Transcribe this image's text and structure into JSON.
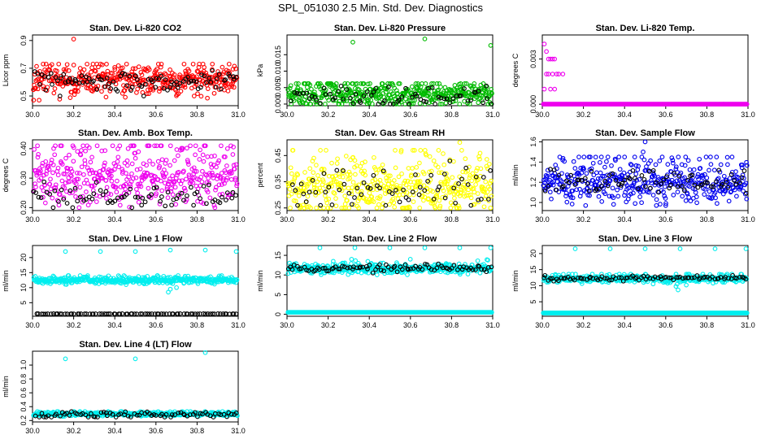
{
  "page": {
    "title": "SPL_051030  2.5 Min. Std. Dev. Diagnostics"
  },
  "chart_data": [
    {
      "type": "scatter",
      "title": "Stan. Dev. Li-820 CO2",
      "ylabel": "Licor ppm",
      "xlim": [
        30.0,
        31.0
      ],
      "ylim": [
        0.43,
        0.94
      ],
      "xticks": [
        "30.0",
        "30.2",
        "30.4",
        "30.6",
        "30.8",
        "31.0"
      ],
      "yticks": [
        "0.5",
        "0.7",
        "0.9"
      ],
      "primary_color": "#ff0000",
      "secondary_color": "#000000",
      "primary_count": 420,
      "primary_center": 0.6,
      "primary_spread": 0.05,
      "primary_min": 0.47,
      "primary_max": 0.73,
      "primary_outliers": [
        [
          30.2,
          0.91
        ]
      ],
      "secondary_count": 95,
      "secondary_center": 0.6,
      "secondary_spread": 0.04,
      "secondary_min": 0.5,
      "secondary_max": 0.7
    },
    {
      "type": "scatter",
      "title": "Stan. Dev. Li-820 Pressure",
      "ylabel": "kPa",
      "xlim": [
        30.0,
        31.0
      ],
      "ylim": [
        -0.0005,
        0.021
      ],
      "xticks": [
        "30.0",
        "30.2",
        "30.4",
        "30.6",
        "30.8",
        "31.0"
      ],
      "yticks": [
        "0.000",
        "0.005",
        "0.010",
        "0.015"
      ],
      "primary_color": "#00bb00",
      "secondary_color": "#000000",
      "primary_count": 460,
      "primary_center": 0.0025,
      "primary_spread": 0.0018,
      "primary_min": 0.0,
      "primary_max": 0.0062,
      "primary_outliers": [
        [
          30.32,
          0.0188
        ],
        [
          30.67,
          0.0198
        ],
        [
          30.99,
          0.0178
        ]
      ],
      "secondary_count": 70,
      "secondary_center": 0.002,
      "secondary_spread": 0.0017,
      "secondary_min": 0.0,
      "secondary_max": 0.0055
    },
    {
      "type": "scatter",
      "title": "Stan. Dev. Li-820 Temp.",
      "ylabel": "degrees C",
      "xlim": [
        30.0,
        31.0
      ],
      "ylim": [
        -0.0001,
        0.0046
      ],
      "xticks": [
        "30.0",
        "30.2",
        "30.4",
        "30.6",
        "30.8",
        "31.0"
      ],
      "yticks": [
        "0.000",
        "0.003"
      ],
      "primary_color": "#ee00ee",
      "secondary_color": "#000000",
      "primary_count": 300,
      "primary_center": 0.0,
      "primary_spread": 0.0,
      "primary_min": 0.0,
      "primary_max": 0.0,
      "primary_outliers": [
        [
          30.0,
          0.0045
        ],
        [
          30.01,
          0.004
        ],
        [
          30.02,
          0.0035
        ],
        [
          30.03,
          0.003
        ],
        [
          30.04,
          0.003
        ],
        [
          30.05,
          0.003
        ],
        [
          30.06,
          0.003
        ],
        [
          30.03,
          0.002
        ],
        [
          30.0,
          0.002
        ],
        [
          30.02,
          0.002
        ],
        [
          30.05,
          0.002
        ],
        [
          30.07,
          0.002
        ],
        [
          30.08,
          0.002
        ],
        [
          30.1,
          0.002
        ],
        [
          30.01,
          0.001
        ],
        [
          30.04,
          0.001
        ],
        [
          30.06,
          0.001
        ]
      ],
      "secondary_count": 0
    },
    {
      "type": "scatter",
      "title": "Stan. Dev. Amb. Box Temp.",
      "ylabel": "degrees C",
      "xlim": [
        30.0,
        31.0
      ],
      "ylim": [
        0.19,
        0.43
      ],
      "xticks": [
        "30.0",
        "30.2",
        "30.4",
        "30.6",
        "30.8",
        "31.0"
      ],
      "yticks": [
        "0.20",
        "0.30",
        "0.40"
      ],
      "primary_color": "#ee00ee",
      "secondary_color": "#000000",
      "primary_count": 440,
      "primary_center": 0.29,
      "primary_spread": 0.045,
      "primary_min": 0.2,
      "primary_max": 0.41,
      "primary_outliers": [],
      "secondary_count": 75,
      "secondary_center": 0.24,
      "secondary_spread": 0.02,
      "secondary_min": 0.2,
      "secondary_max": 0.3
    },
    {
      "type": "scatter",
      "title": "Stan. Dev. Gas Stream RH",
      "ylabel": "percent",
      "xlim": [
        30.0,
        31.0
      ],
      "ylim": [
        0.24,
        0.51
      ],
      "xticks": [
        "30.0",
        "30.2",
        "30.4",
        "30.6",
        "30.8",
        "31.0"
      ],
      "yticks": [
        "0.25",
        "0.35",
        "0.45"
      ],
      "primary_color": "#ffff00",
      "secondary_color": "#000000",
      "primary_count": 450,
      "primary_center": 0.31,
      "primary_spread": 0.045,
      "primary_min": 0.25,
      "primary_max": 0.47,
      "primary_outliers": [
        [
          30.84,
          0.5
        ]
      ],
      "secondary_count": 65,
      "secondary_center": 0.32,
      "secondary_spread": 0.04,
      "secondary_min": 0.26,
      "secondary_max": 0.46
    },
    {
      "type": "scatter",
      "title": "Stan. Dev. Sample Flow",
      "ylabel": "ml/min",
      "xlim": [
        30.0,
        31.0
      ],
      "ylim": [
        0.92,
        1.62
      ],
      "xticks": [
        "30.0",
        "30.2",
        "30.4",
        "30.6",
        "30.8",
        "31.0"
      ],
      "yticks": [
        "1.0",
        "1.2",
        "1.4",
        "1.6"
      ],
      "primary_color": "#0000ee",
      "secondary_color": "#000000",
      "primary_count": 430,
      "primary_center": 1.17,
      "primary_spread": 0.09,
      "primary_min": 0.97,
      "primary_max": 1.45,
      "primary_outliers": [
        [
          30.5,
          1.6
        ],
        [
          30.49,
          1.5
        ],
        [
          30.6,
          0.97
        ]
      ],
      "secondary_count": 80,
      "secondary_center": 1.2,
      "secondary_spread": 0.06,
      "secondary_min": 1.02,
      "secondary_max": 1.35
    },
    {
      "type": "scatter",
      "title": "Stan. Dev. Line 1 Flow",
      "ylabel": "ml/min",
      "xlim": [
        30.0,
        31.0
      ],
      "ylim": [
        0.5,
        24.0
      ],
      "xticks": [
        "30.0",
        "30.2",
        "30.4",
        "30.6",
        "30.8",
        "31.0"
      ],
      "yticks": [
        "5",
        "10",
        "15",
        "20"
      ],
      "primary_color": "#00eeee",
      "secondary_color": "#000000",
      "primary_count": 430,
      "primary_center": 12.3,
      "primary_spread": 0.5,
      "primary_min": 10.5,
      "primary_max": 14.0,
      "primary_outliers": [
        [
          30.16,
          22.0
        ],
        [
          30.33,
          22.0
        ],
        [
          30.5,
          22.0
        ],
        [
          30.67,
          22.5
        ],
        [
          30.84,
          22.5
        ],
        [
          30.99,
          22.0
        ],
        [
          30.67,
          9.5
        ],
        [
          30.66,
          8.5
        ],
        [
          30.7,
          10.0
        ]
      ],
      "secondary_count": 85,
      "secondary_center": 1.3,
      "secondary_spread": 0.02,
      "secondary_min": 1.2,
      "secondary_max": 1.4
    },
    {
      "type": "scatter",
      "title": "Stan. Dev. Line 2 Flow",
      "ylabel": "ml/min",
      "xlim": [
        30.0,
        31.0
      ],
      "ylim": [
        -0.5,
        17.5
      ],
      "xticks": [
        "30.0",
        "30.2",
        "30.4",
        "30.6",
        "30.8",
        "31.0"
      ],
      "yticks": [
        "0",
        "5",
        "10",
        "15"
      ],
      "primary_color": "#00eeee",
      "secondary_color": "#000000",
      "primary_count": 460,
      "primary_center": 11.4,
      "primary_spread": 0.5,
      "primary_min": 9.5,
      "primary_max": 14.0,
      "primary_outliers": [
        [
          30.16,
          16.9
        ],
        [
          30.33,
          16.9
        ],
        [
          30.5,
          16.9
        ],
        [
          30.67,
          16.9
        ],
        [
          30.84,
          16.9
        ],
        [
          30.99,
          16.9
        ]
      ],
      "secondary_count": 90,
      "secondary_center": 11.8,
      "secondary_spread": 0.5,
      "secondary_min": 10.5,
      "secondary_max": 14.0,
      "baseline_color": "#00eeee",
      "baseline_count": 320,
      "baseline_value": 0.5
    },
    {
      "type": "scatter",
      "title": "Stan. Dev. Line 3 Flow",
      "ylabel": "ml/min",
      "xlim": [
        30.0,
        31.0
      ],
      "ylim": [
        0.5,
        22.5
      ],
      "xticks": [
        "30.0",
        "30.2",
        "30.4",
        "30.6",
        "30.8",
        "31.0"
      ],
      "yticks": [
        "5",
        "10",
        "15",
        "20"
      ],
      "primary_color": "#00eeee",
      "secondary_color": "#000000",
      "primary_count": 400,
      "primary_center": 12.0,
      "primary_spread": 0.5,
      "primary_min": 10.5,
      "primary_max": 13.6,
      "primary_outliers": [
        [
          30.16,
          21.5
        ],
        [
          30.33,
          21.5
        ],
        [
          30.5,
          21.5
        ],
        [
          30.67,
          21.5
        ],
        [
          30.84,
          21.5
        ],
        [
          30.99,
          21.5
        ],
        [
          30.66,
          8.7
        ],
        [
          30.65,
          9.8
        ],
        [
          30.7,
          10.2
        ]
      ],
      "secondary_count": 90,
      "secondary_center": 12.3,
      "secondary_spread": 0.4,
      "secondary_min": 11.2,
      "secondary_max": 13.2,
      "baseline_color": "#00eeee",
      "baseline_count": 320,
      "baseline_value": 1.5
    },
    {
      "type": "scatter",
      "title": "Stan. Dev. Line 4 (LT) Flow",
      "ylabel": "ml/min",
      "xlim": [
        30.0,
        31.0
      ],
      "ylim": [
        0.18,
        1.2
      ],
      "xticks": [
        "30.0",
        "30.2",
        "30.4",
        "30.6",
        "30.8",
        "31.0"
      ],
      "yticks": [
        "0.2",
        "0.4",
        "0.6",
        "0.8",
        "1.0"
      ],
      "primary_color": "#00eeee",
      "secondary_color": "#000000",
      "primary_count": 430,
      "primary_center": 0.29,
      "primary_spread": 0.012,
      "primary_min": 0.25,
      "primary_max": 0.33,
      "primary_outliers": [
        [
          30.16,
          1.09
        ],
        [
          30.5,
          1.09
        ],
        [
          30.84,
          1.18
        ]
      ],
      "secondary_count": 80,
      "secondary_center": 0.29,
      "secondary_spread": 0.02,
      "secondary_min": 0.25,
      "secondary_max": 0.36
    }
  ]
}
